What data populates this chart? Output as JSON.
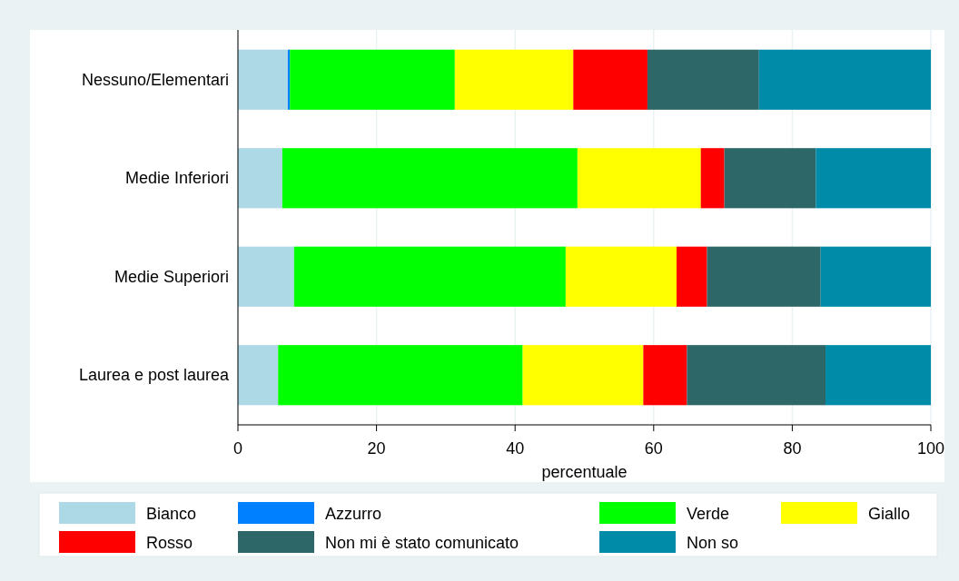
{
  "chart_data": {
    "type": "bar",
    "orientation": "horizontal",
    "stacked": true,
    "xlabel": "percentuale",
    "categories": [
      "Nessuno/Elementari",
      "Medie Inferiori",
      "Medie Superiori",
      "Laurea e post laurea"
    ],
    "series": [
      {
        "name": "Bianco",
        "color": "#add8e6",
        "values": [
          7.2,
          6.4,
          8.1,
          5.8
        ]
      },
      {
        "name": "Azzurro",
        "color": "#0080ff",
        "values": [
          0.3,
          0,
          0,
          0
        ]
      },
      {
        "name": "Verde",
        "color": "#00ff00",
        "values": [
          23.8,
          42.6,
          39.2,
          35.3
        ]
      },
      {
        "name": "Giallo",
        "color": "#ffff00",
        "values": [
          17.1,
          17.8,
          16.0,
          17.4
        ]
      },
      {
        "name": "Rosso",
        "color": "#ff0000",
        "values": [
          10.7,
          3.4,
          4.4,
          6.3
        ]
      },
      {
        "name": "Non mi è stato comunicato",
        "color": "#2e6767",
        "values": [
          16.1,
          13.2,
          16.4,
          20.0
        ]
      },
      {
        "name": "Non so",
        "color": "#008ba8",
        "values": [
          24.8,
          16.6,
          15.9,
          15.2
        ]
      }
    ],
    "xlim": [
      0,
      100
    ],
    "xticks": [
      0,
      20,
      40,
      60,
      80,
      100
    ],
    "grid": "x",
    "legend": "bottom"
  }
}
